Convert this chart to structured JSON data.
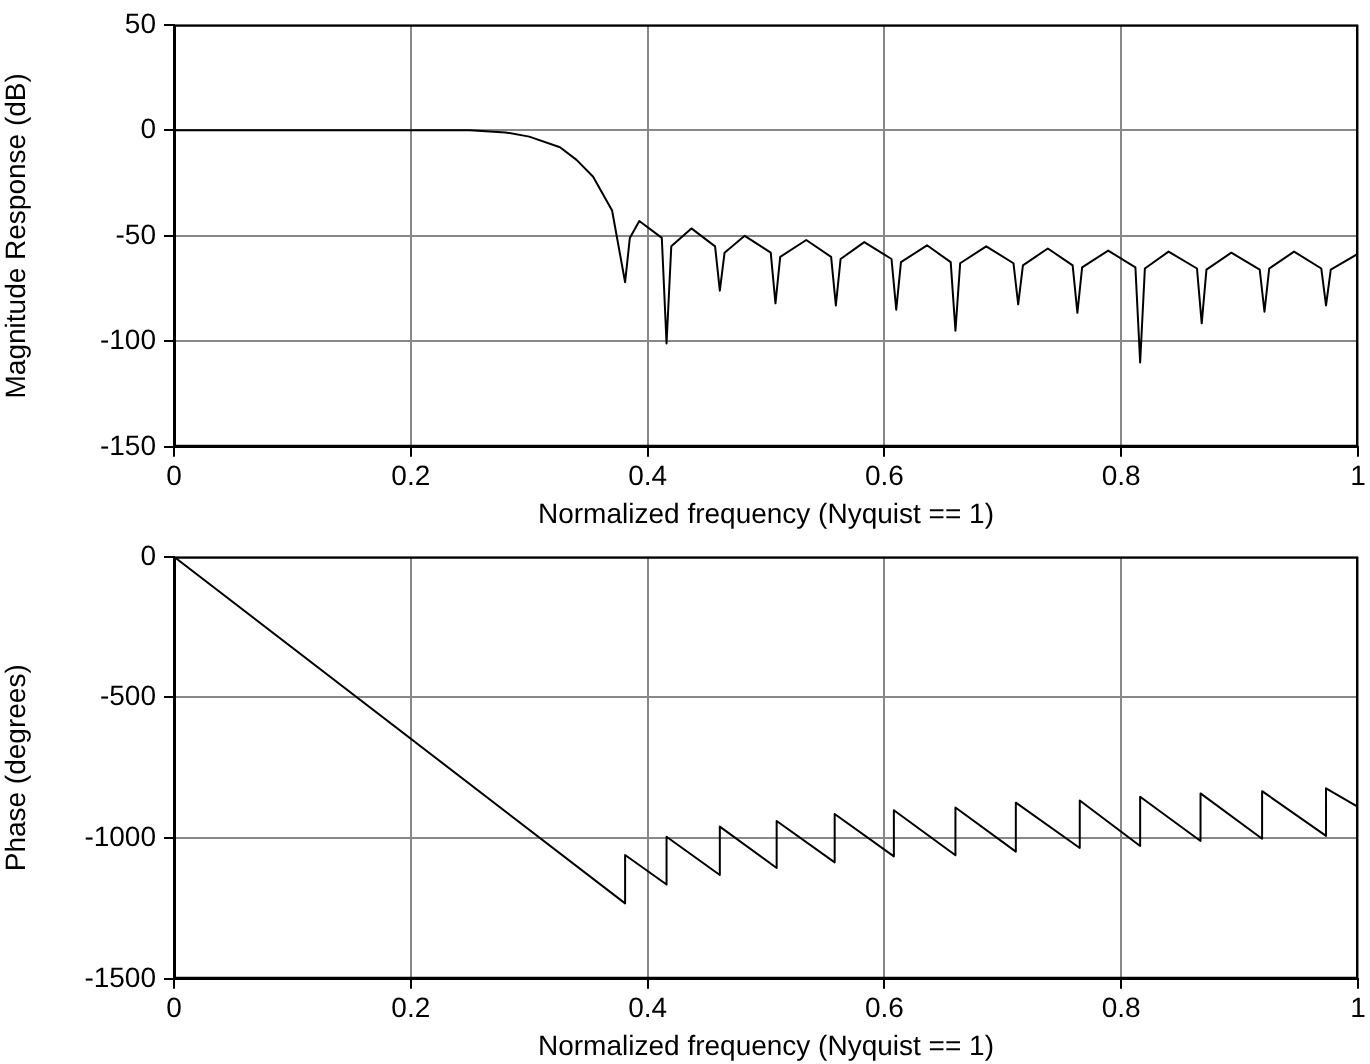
{
  "chart_data": [
    {
      "type": "line",
      "xlabel": "Normalized frequency (Nyquist == 1)",
      "ylabel": "Magnitude Response (dB)",
      "xlim": [
        0,
        1
      ],
      "xticks": [
        0,
        0.2,
        0.4,
        0.6,
        0.8,
        1
      ],
      "ylim": [
        -150,
        50
      ],
      "yticks": [
        -150,
        -100,
        -50,
        0,
        50
      ],
      "grid": true,
      "series": [
        {
          "color": "#000000",
          "x": [
            0,
            0.1,
            0.2,
            0.25,
            0.28,
            0.3,
            0.326,
            0.34,
            0.354,
            0.37,
            0.381,
            0.385,
            0.393,
            0.412,
            0.416,
            0.42,
            0.437,
            0.457,
            0.461,
            0.465,
            0.482,
            0.504,
            0.508,
            0.512,
            0.534,
            0.555,
            0.559,
            0.563,
            0.583,
            0.606,
            0.61,
            0.614,
            0.636,
            0.656,
            0.66,
            0.664,
            0.686,
            0.709,
            0.713,
            0.717,
            0.738,
            0.759,
            0.763,
            0.767,
            0.789,
            0.812,
            0.816,
            0.82,
            0.84,
            0.864,
            0.868,
            0.872,
            0.893,
            0.917,
            0.921,
            0.925,
            0.946,
            0.969,
            0.973,
            0.977,
            1
          ],
          "values": [
            0,
            0,
            0,
            0,
            -1,
            -3,
            -8,
            -14,
            -22,
            -38,
            -72,
            -51,
            -43,
            -51,
            -101,
            -55,
            -46.5,
            -55,
            -76,
            -58,
            -50,
            -58,
            -82,
            -60,
            -52,
            -60,
            -83,
            -61,
            -53,
            -61,
            -85,
            -62.5,
            -54.5,
            -62.5,
            -95,
            -63,
            -55,
            -63,
            -82.5,
            -64,
            -56,
            -64,
            -86.5,
            -65,
            -57,
            -65,
            -110,
            -65.5,
            -57.5,
            -65.5,
            -91.5,
            -66,
            -58,
            -66,
            -86,
            -65.5,
            -57.5,
            -65.5,
            -83,
            -66,
            -58.5
          ]
        }
      ]
    },
    {
      "type": "line",
      "xlabel": "Normalized frequency (Nyquist == 1)",
      "ylabel": "Phase (degrees)",
      "xlim": [
        0,
        1
      ],
      "xticks": [
        0,
        0.2,
        0.4,
        0.6,
        0.8,
        1
      ],
      "ylim": [
        -1500,
        0
      ],
      "yticks": [
        -1500,
        -1000,
        -500,
        0
      ],
      "grid": true,
      "series": [
        {
          "color": "#000000",
          "x": [
            0,
            0.381,
            0.381,
            0.416,
            0.416,
            0.461,
            0.461,
            0.509,
            0.509,
            0.558,
            0.558,
            0.608,
            0.608,
            0.66,
            0.66,
            0.711,
            0.711,
            0.765,
            0.765,
            0.816,
            0.816,
            0.867,
            0.867,
            0.919,
            0.919,
            0.973,
            0.973,
            1
          ],
          "values": [
            0,
            -1232,
            -1060,
            -1165,
            -995,
            -1131,
            -959,
            -1106,
            -939,
            -1086,
            -914,
            -1065,
            -901,
            -1061,
            -891,
            -1048,
            -874,
            -1035,
            -866,
            -1028,
            -853,
            -1010,
            -841,
            -1002,
            -833,
            -992,
            -823,
            -889
          ]
        }
      ]
    }
  ]
}
